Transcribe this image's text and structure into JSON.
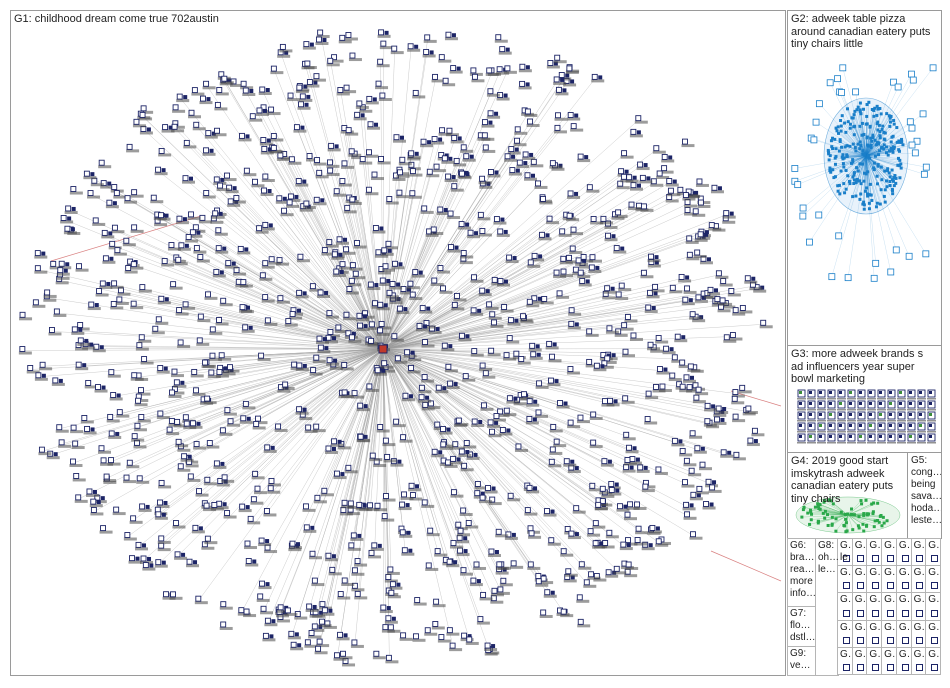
{
  "groups": {
    "g1": {
      "title": "G1: childhood dream come true 702austin"
    },
    "g2": {
      "title": "G2: adweek table pizza\naround canadian eatery puts\ntiny chairs little"
    },
    "g3": {
      "title": "G3: more adweek brands s\nad influencers year super\nbowl marketing"
    },
    "g4": {
      "title": "G4: 2019 good start\nimskytrash adweek\ncanadian eatery puts\ntiny chairs"
    },
    "g5": {
      "title": "G5:\ncong…\nbeing\nsava…\nhoda…\nleste…"
    },
    "g6": {
      "title": "G6:\nbra…\nrea…\nmore\ninfo…"
    },
    "g7": {
      "title": "G7:\nflo…\ndstl…"
    },
    "g8": {
      "title": "G8:\noh…\nle…"
    },
    "g9": {
      "title": "G9:\nve…"
    },
    "mini_cells": [
      {
        "label": "G…\nle…"
      },
      {
        "label": "G…"
      },
      {
        "label": "G…"
      },
      {
        "label": "G…"
      },
      {
        "label": "G…"
      },
      {
        "label": "G…"
      },
      {
        "label": "G…"
      },
      {
        "label": "G…"
      },
      {
        "label": "G…"
      },
      {
        "label": "G…"
      },
      {
        "label": "G…"
      },
      {
        "label": "G…"
      },
      {
        "label": "G…"
      },
      {
        "label": "G…"
      },
      {
        "label": "G…"
      },
      {
        "label": "G…"
      },
      {
        "label": "G…"
      },
      {
        "label": "G…"
      },
      {
        "label": "G…"
      },
      {
        "label": "G…"
      },
      {
        "label": "G…"
      },
      {
        "label": "G…"
      },
      {
        "label": "G…"
      },
      {
        "label": "G…"
      },
      {
        "label": "G…"
      },
      {
        "label": "G…"
      },
      {
        "label": "G…"
      },
      {
        "label": "G…"
      },
      {
        "label": "G…"
      },
      {
        "label": "G…"
      },
      {
        "label": "G…"
      },
      {
        "label": "G…"
      },
      {
        "label": "G…"
      },
      {
        "label": "G…"
      },
      {
        "label": "G…"
      }
    ]
  },
  "colors": {
    "edge": "#9b9b9b",
    "node": "#1c2466",
    "label_shadow": "#4a4a4a",
    "red_edge": "#d98080",
    "g2_node": "#1a7fc9",
    "g4_node": "#2aa84a",
    "border": "#9a9a9a"
  },
  "node_icon": "account-square-icon"
}
